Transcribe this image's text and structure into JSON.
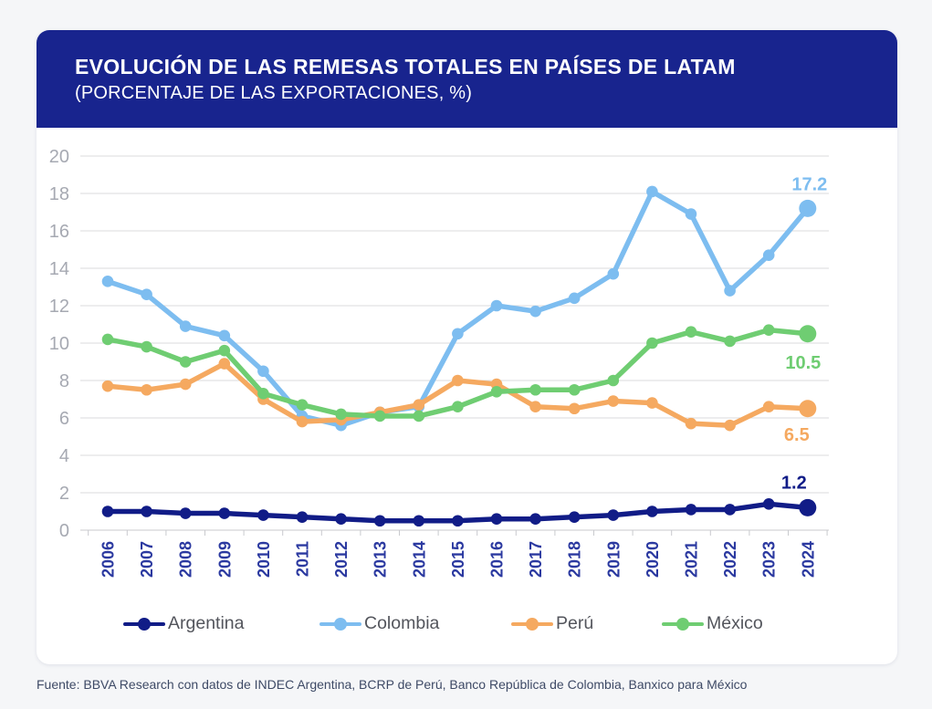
{
  "header": {
    "title": "EVOLUCIÓN DE LAS REMESAS TOTALES EN PAÍSES DE LATAM",
    "subtitle": "(PORCENTAJE DE LAS EXPORTACIONES, %)"
  },
  "chart_data": {
    "type": "line",
    "title": "EVOLUCIÓN DE LAS REMESAS TOTALES EN PAÍSES DE LATAM",
    "subtitle": "(PORCENTAJE DE LAS EXPORTACIONES, %)",
    "x": [
      "2006",
      "2007",
      "2008",
      "2009",
      "2010",
      "2011",
      "2012",
      "2013",
      "2014",
      "2015",
      "2016",
      "2017",
      "2018",
      "2019",
      "2020",
      "2021",
      "2022",
      "2023",
      "2024"
    ],
    "ylim": [
      0,
      20
    ],
    "ytick_step": 2,
    "yticks": [
      0,
      2,
      4,
      6,
      8,
      10,
      12,
      14,
      16,
      18,
      20
    ],
    "grid": "horizontal",
    "legend_position": "bottom",
    "series": [
      {
        "name": "Argentina",
        "color": "#111C87",
        "end_label": "1.2",
        "values": [
          1.0,
          1.0,
          0.9,
          0.9,
          0.8,
          0.7,
          0.6,
          0.5,
          0.5,
          0.5,
          0.6,
          0.6,
          0.7,
          0.8,
          1.0,
          1.1,
          1.1,
          1.4,
          1.2
        ]
      },
      {
        "name": "Colombia",
        "color": "#7DBDF0",
        "end_label": "17.2",
        "values": [
          13.3,
          12.6,
          10.9,
          10.4,
          8.5,
          6.1,
          5.6,
          6.3,
          6.6,
          10.5,
          12.0,
          11.7,
          12.4,
          13.7,
          18.1,
          16.9,
          12.8,
          14.7,
          17.2
        ]
      },
      {
        "name": "Perú",
        "color": "#F5A960",
        "end_label": "6.5",
        "values": [
          7.7,
          7.5,
          7.8,
          8.9,
          7.0,
          5.8,
          5.9,
          6.3,
          6.7,
          8.0,
          7.8,
          6.6,
          6.5,
          6.9,
          6.8,
          5.7,
          5.6,
          6.6,
          6.5
        ]
      },
      {
        "name": "México",
        "color": "#6FCD72",
        "end_label": "10.5",
        "values": [
          10.2,
          9.8,
          9.0,
          9.6,
          7.3,
          6.7,
          6.2,
          6.1,
          6.1,
          6.6,
          7.4,
          7.5,
          7.5,
          8.0,
          10.0,
          10.6,
          10.1,
          10.7,
          10.5
        ]
      }
    ]
  },
  "colors": {
    "page_background": "#F5F6F8",
    "card_background": "#FFFFFF",
    "header_background": "#18248E",
    "header_text": "#FFFFFF",
    "gridline": "#DBDBDD",
    "axis_line": "#C9CACE",
    "y_tick_label": "#A6A9B2",
    "x_tick_label": "#2B39A0",
    "legend_text": "#53555C",
    "footer_text": "#3E4A66"
  },
  "footer": {
    "source": "Fuente: BBVA Research con datos de INDEC Argentina, BCRP de Perú, Banco República de Colombia, Banxico para México"
  }
}
